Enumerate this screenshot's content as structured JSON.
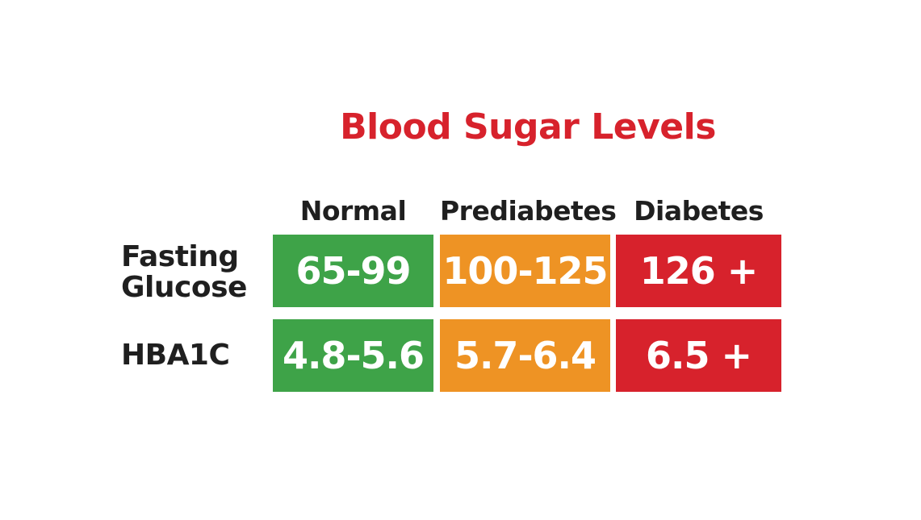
{
  "chart_data": {
    "type": "table",
    "title": "Blood Sugar Levels",
    "columns": [
      "Normal",
      "Prediabetes",
      "Diabetes"
    ],
    "rows": [
      {
        "label_lines": [
          "Fasting",
          "Glucose"
        ],
        "cells": [
          "65-99",
          "100-125",
          "126 +"
        ]
      },
      {
        "label_lines": [
          "HBA1C"
        ],
        "cells": [
          "4.8-5.6",
          "5.7-6.4",
          "6.5 +"
        ]
      }
    ]
  },
  "colors": {
    "title": "#d7222c",
    "label_text": "#1f1f1f",
    "normal": "#3ea348",
    "prediabetes": "#ee9324",
    "diabetes": "#d7222c"
  }
}
